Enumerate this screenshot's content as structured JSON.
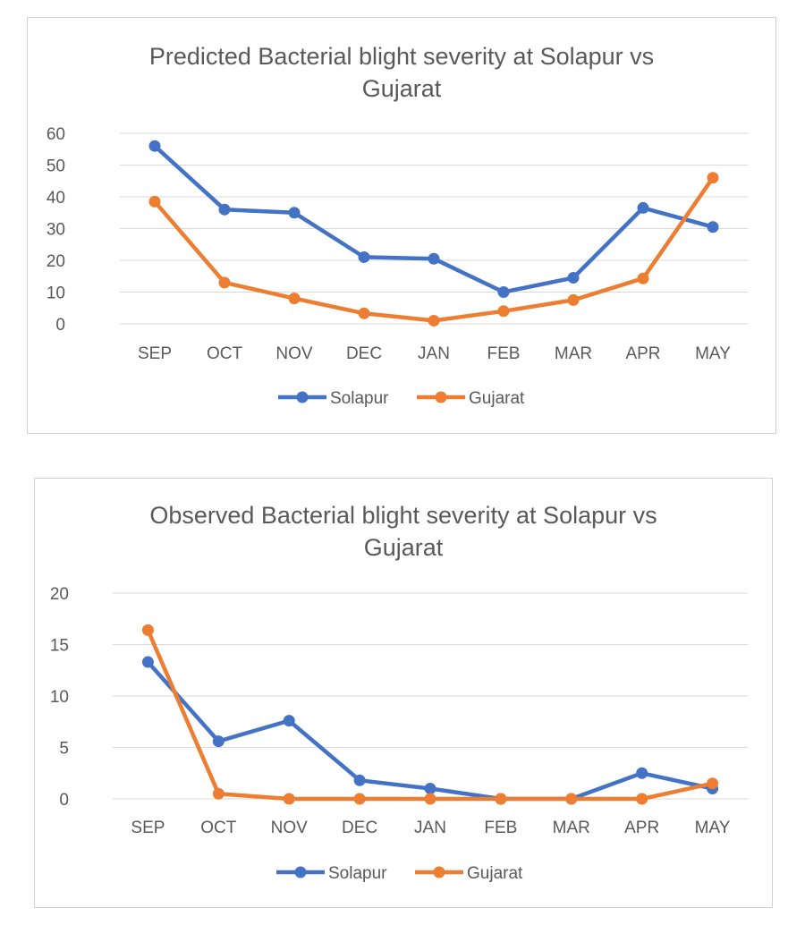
{
  "chart_data": [
    {
      "type": "line",
      "title": "Predicted Bacterial blight severity at Solapur vs Gujarat",
      "title_lines": [
        "Predicted Bacterial blight severity at Solapur vs",
        "Gujarat"
      ],
      "categories": [
        "SEP",
        "OCT",
        "NOV",
        "DEC",
        "JAN",
        "FEB",
        "MAR",
        "APR",
        "MAY"
      ],
      "series": [
        {
          "name": "Solapur",
          "color": "#4472C4",
          "values": [
            56,
            36,
            35,
            21,
            20.5,
            10,
            14.5,
            36.5,
            30.5
          ]
        },
        {
          "name": "Gujarat",
          "color": "#ED7D31",
          "values": [
            38.5,
            13,
            8,
            3.3,
            1,
            4,
            7.5,
            14.3,
            46
          ]
        }
      ],
      "yticks": [
        0,
        10,
        20,
        30,
        40,
        50,
        60
      ],
      "ylim": [
        0,
        60
      ],
      "grid": true,
      "legend": "bottom"
    },
    {
      "type": "line",
      "title": "Observed Bacterial blight severity at Solapur vs Gujarat",
      "title_lines": [
        "Observed Bacterial blight severity at Solapur vs",
        "Gujarat"
      ],
      "categories": [
        "SEP",
        "OCT",
        "NOV",
        "DEC",
        "JAN",
        "FEB",
        "MAR",
        "APR",
        "MAY"
      ],
      "series": [
        {
          "name": "Solapur",
          "color": "#4472C4",
          "values": [
            13.3,
            5.6,
            7.6,
            1.8,
            1,
            0,
            0,
            2.5,
            1
          ]
        },
        {
          "name": "Gujarat",
          "color": "#ED7D31",
          "values": [
            16.4,
            0.5,
            0,
            0,
            0,
            0,
            0,
            0,
            1.5
          ]
        }
      ],
      "yticks": [
        0,
        5,
        10,
        15,
        20
      ],
      "ylim": [
        0,
        20
      ],
      "grid": true,
      "legend": "bottom"
    }
  ]
}
